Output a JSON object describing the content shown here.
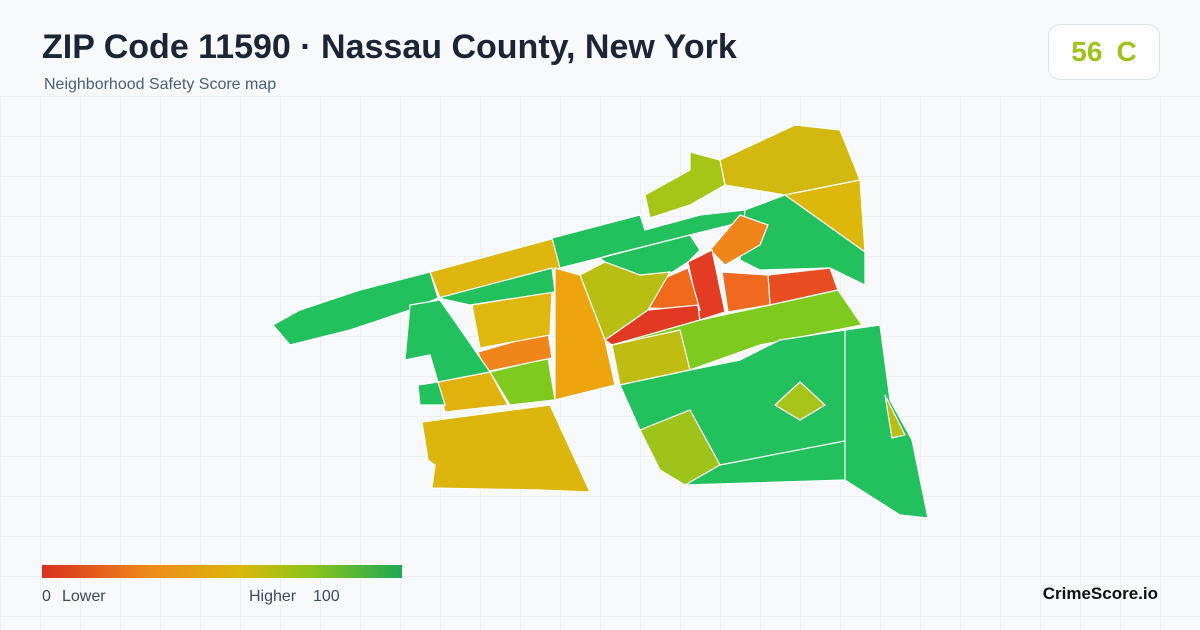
{
  "header": {
    "title": "ZIP Code 11590 · Nassau County, New York",
    "subtitle": "Neighborhood Safety Score map"
  },
  "score": {
    "value": 56,
    "grade": "C"
  },
  "legend": {
    "min": 0,
    "min_label": "Lower",
    "max_label": "Higher",
    "max": 100
  },
  "brand": "CrimeScore.io"
}
